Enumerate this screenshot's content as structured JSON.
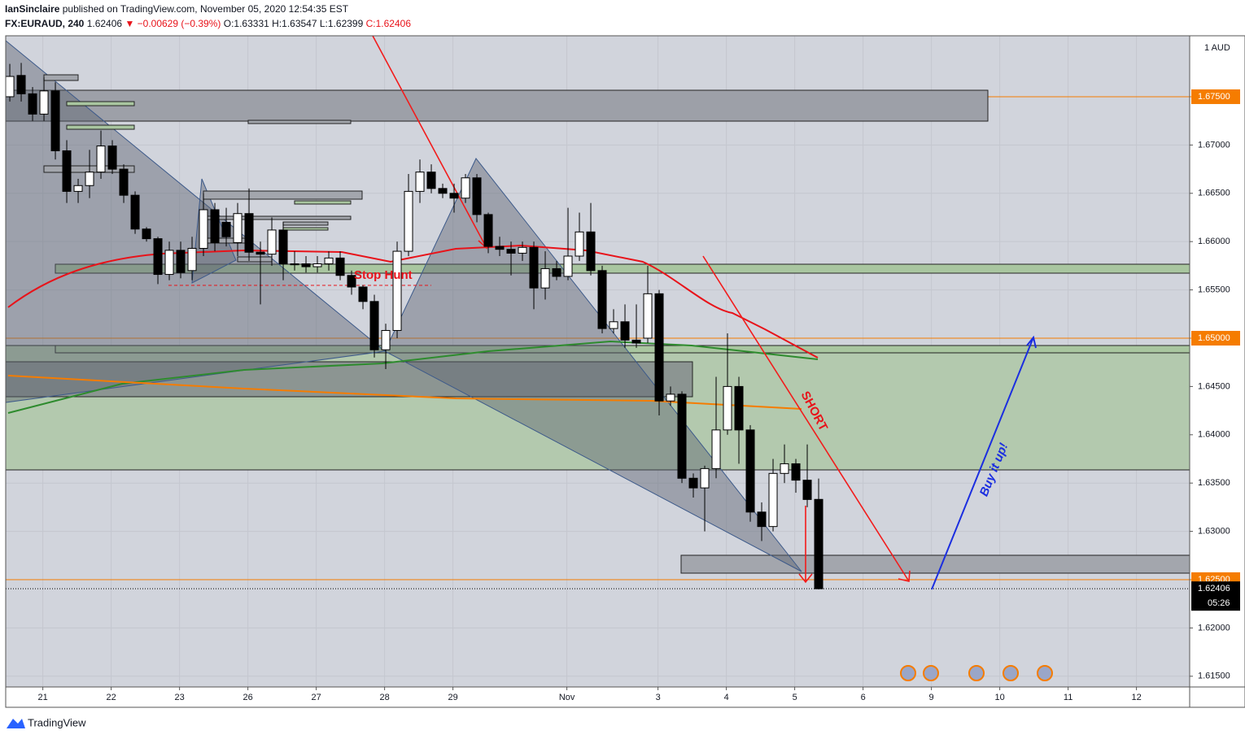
{
  "chart_data": {
    "type": "candlestick",
    "header": {
      "author": "IanSinclaire",
      "published": "published on TradingView.com, November 05, 2020 12:54:35 EST",
      "symbol": "FX:EURAUD, 240",
      "last": "1.62406",
      "change": "▼ −0.00629 (−0.39%)",
      "open": "O:1.63331",
      "high": "H:1.63547",
      "low": "L:1.62399",
      "close": "C:1.62406"
    },
    "currency": "1 AUD",
    "annotations": [
      "Stop Hunt",
      "SHORT",
      "Buy it up!"
    ],
    "brand": "TradingView",
    "x": [
      0,
      1,
      2,
      3,
      4,
      5,
      6,
      7,
      8,
      9,
      10,
      11,
      12,
      13,
      14,
      15,
      16,
      17,
      18,
      19,
      20,
      21,
      22,
      23,
      24,
      25,
      26,
      27,
      28,
      29,
      30,
      31,
      32,
      33,
      34,
      35,
      36,
      37,
      38,
      39,
      40,
      41,
      42,
      43,
      44,
      45,
      46,
      47,
      48,
      49,
      50,
      51,
      52,
      53,
      54,
      55,
      56,
      57,
      58,
      59,
      60,
      61,
      62,
      63,
      64,
      65,
      66,
      67,
      68,
      69,
      70,
      71
    ],
    "open": [
      1.675,
      1.6772,
      1.6753,
      1.6732,
      1.6756,
      1.6694,
      1.6652,
      1.6658,
      1.6672,
      1.6699,
      1.6675,
      1.6648,
      1.6613,
      1.6603,
      1.6566,
      1.6591,
      1.657,
      1.6593,
      1.6633,
      1.662,
      1.6599,
      1.6629,
      1.6589,
      1.6587,
      1.6612,
      1.6577,
      1.6577,
      1.6574,
      1.6577,
      1.6583,
      1.6565,
      1.6553,
      1.6538,
      1.6488,
      1.6508,
      1.659,
      1.6652,
      1.6672,
      1.6655,
      1.665,
      1.6645,
      1.6666,
      1.6628,
      1.6595,
      1.6592,
      1.6588,
      1.6594,
      1.6552,
      1.6572,
      1.6564,
      1.6585,
      1.661,
      1.657,
      1.651,
      1.6517,
      1.6498,
      1.65,
      1.6546,
      1.6435,
      1.6442,
      1.6355,
      1.6345,
      1.6365,
      1.6405,
      1.645,
      1.6405,
      1.632,
      1.6305,
      1.636,
      1.637,
      1.6353,
      1.63331
    ],
    "high": [
      1.6784,
      1.6785,
      1.676,
      1.677,
      1.6765,
      1.6705,
      1.6665,
      1.6695,
      1.6715,
      1.6705,
      1.668,
      1.6652,
      1.6615,
      1.6605,
      1.66,
      1.66,
      1.6605,
      1.665,
      1.664,
      1.6635,
      1.664,
      1.6655,
      1.66,
      1.6625,
      1.662,
      1.659,
      1.6585,
      1.6585,
      1.659,
      1.659,
      1.657,
      1.6555,
      1.6545,
      1.6515,
      1.66,
      1.667,
      1.6685,
      1.668,
      1.666,
      1.666,
      1.667,
      1.667,
      1.663,
      1.6605,
      1.66,
      1.66,
      1.66,
      1.659,
      1.658,
      1.6635,
      1.663,
      1.664,
      1.6575,
      1.653,
      1.6535,
      1.6535,
      1.6575,
      1.655,
      1.645,
      1.6445,
      1.636,
      1.6368,
      1.646,
      1.6505,
      1.646,
      1.641,
      1.633,
      1.6375,
      1.639,
      1.6375,
      1.639,
      1.63547
    ],
    "low": [
      1.6745,
      1.6745,
      1.6725,
      1.6725,
      1.6685,
      1.664,
      1.664,
      1.6645,
      1.6665,
      1.667,
      1.664,
      1.6608,
      1.66,
      1.6556,
      1.656,
      1.6562,
      1.656,
      1.6585,
      1.659,
      1.6595,
      1.6585,
      1.658,
      1.6535,
      1.6575,
      1.656,
      1.657,
      1.6568,
      1.6568,
      1.657,
      1.656,
      1.6545,
      1.653,
      1.648,
      1.6468,
      1.65,
      1.6585,
      1.664,
      1.665,
      1.6645,
      1.663,
      1.664,
      1.662,
      1.6588,
      1.6585,
      1.6565,
      1.658,
      1.653,
      1.654,
      1.656,
      1.656,
      1.658,
      1.6565,
      1.6505,
      1.6505,
      1.649,
      1.649,
      1.6495,
      1.642,
      1.643,
      1.635,
      1.6335,
      1.63,
      1.6355,
      1.64,
      1.637,
      1.631,
      1.629,
      1.63,
      1.635,
      1.634,
      1.6325,
      1.62399
    ],
    "close": [
      1.6771,
      1.6753,
      1.6732,
      1.6756,
      1.6694,
      1.6652,
      1.6658,
      1.6672,
      1.6699,
      1.6675,
      1.6648,
      1.6613,
      1.6603,
      1.6566,
      1.6591,
      1.6568,
      1.6593,
      1.6633,
      1.6599,
      1.6605,
      1.6629,
      1.6589,
      1.6587,
      1.6612,
      1.6577,
      1.6576,
      1.6574,
      1.6577,
      1.6583,
      1.6565,
      1.6553,
      1.6538,
      1.6488,
      1.6508,
      1.659,
      1.6652,
      1.6672,
      1.6655,
      1.665,
      1.6645,
      1.6666,
      1.6628,
      1.6595,
      1.6592,
      1.6588,
      1.6594,
      1.6552,
      1.6572,
      1.6564,
      1.6585,
      1.661,
      1.657,
      1.651,
      1.6517,
      1.6498,
      1.6495,
      1.6546,
      1.6435,
      1.6442,
      1.6355,
      1.6345,
      1.6365,
      1.6405,
      1.645,
      1.6405,
      1.632,
      1.6305,
      1.636,
      1.637,
      1.6353,
      1.6333,
      1.62406
    ],
    "up_color": "#ffffff",
    "down_color": "#000000",
    "xlim": [
      -0.36,
      103.57
    ],
    "xticks": [
      {
        "value": 2.9,
        "label": "21"
      },
      {
        "value": 8.9,
        "label": "22"
      },
      {
        "value": 14.9,
        "label": "23"
      },
      {
        "value": 20.9,
        "label": "26"
      },
      {
        "value": 26.9,
        "label": "27"
      },
      {
        "value": 32.9,
        "label": "28"
      },
      {
        "value": 38.9,
        "label": "29"
      },
      {
        "value": 48.9,
        "label": "Nov"
      },
      {
        "value": 56.9,
        "label": "3"
      },
      {
        "value": 62.9,
        "label": "4"
      },
      {
        "value": 68.9,
        "label": "5"
      },
      {
        "value": 74.9,
        "label": "6"
      },
      {
        "value": 80.9,
        "label": "9"
      },
      {
        "value": 86.9,
        "label": "10"
      },
      {
        "value": 92.9,
        "label": "11"
      },
      {
        "value": 98.9,
        "label": "12"
      }
    ],
    "ylim": [
      1.61389,
      1.68131
    ],
    "yticks": [
      {
        "value": 1.615,
        "label": "1.61500"
      },
      {
        "value": 1.62,
        "label": "1.62000"
      },
      {
        "value": 1.63,
        "label": "1.63000"
      },
      {
        "value": 1.635,
        "label": "1.63500"
      },
      {
        "value": 1.64,
        "label": "1.64000"
      },
      {
        "value": 1.645,
        "label": "1.64500"
      },
      {
        "value": 1.655,
        "label": "1.65500"
      },
      {
        "value": 1.66,
        "label": "1.66000"
      },
      {
        "value": 1.665,
        "label": "1.66500"
      },
      {
        "value": 1.67,
        "label": "1.67000"
      }
    ],
    "price_lines": [
      {
        "value": 1.675,
        "label": "1.67500"
      },
      {
        "value": 1.65,
        "label": "1.65000"
      },
      {
        "value": 1.625,
        "label": "1.62500"
      }
    ],
    "price_line_color": "#f57c00",
    "last_price": {
      "value": 1.62406,
      "label": "1.62406",
      "countdown": "05:26"
    },
    "grid": true
  }
}
